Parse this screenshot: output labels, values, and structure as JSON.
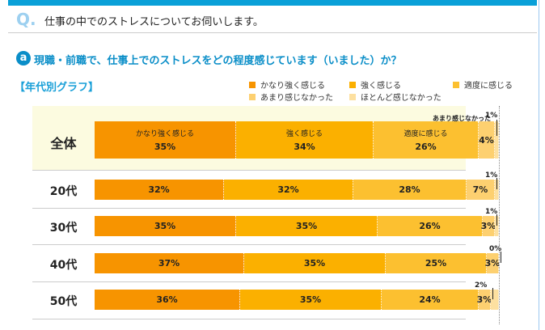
{
  "question": {
    "mark": "Q.",
    "text": "仕事の中でのストレスについてお伺いします。"
  },
  "subquestion": {
    "mark": "a",
    "text": "現職・前職で、仕事上でのストレスをどの程度感じています（いました）か？"
  },
  "graph_title": "【年代別グラフ】",
  "chart_data": {
    "type": "bar",
    "orientation": "horizontal",
    "stacked": true,
    "xlim": [
      0,
      100
    ],
    "legend": [
      "かなり強く感じる",
      "強く感じる",
      "適度に感じる",
      "あまり感じなかった",
      "ほとんど感じなかった"
    ],
    "colors": [
      "#f79400",
      "#fbb000",
      "#fcc030",
      "#fdd070",
      "#fde0a0"
    ],
    "categories": [
      "全体",
      "20代",
      "30代",
      "40代",
      "50代"
    ],
    "series": [
      {
        "name": "かなり強く感じる",
        "values": [
          35,
          32,
          35,
          37,
          36
        ]
      },
      {
        "name": "強く感じる",
        "values": [
          34,
          32,
          35,
          35,
          35
        ]
      },
      {
        "name": "適度に感じる",
        "values": [
          26,
          28,
          26,
          25,
          24
        ]
      },
      {
        "name": "あまり感じなかった",
        "values": [
          4,
          7,
          3,
          3,
          3
        ]
      },
      {
        "name": "ほとんど感じなかった",
        "values": [
          1,
          1,
          1,
          0,
          2
        ]
      }
    ],
    "unit": "%"
  }
}
